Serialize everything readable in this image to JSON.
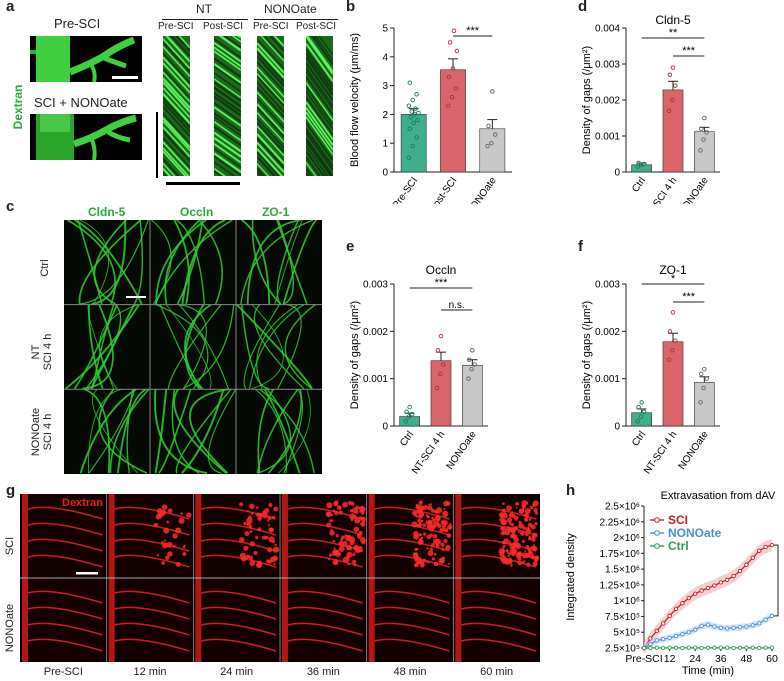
{
  "panel_letters": {
    "a": "a",
    "b": "b",
    "c": "c",
    "d": "d",
    "e": "e",
    "f": "f",
    "g": "g",
    "h": "h"
  },
  "panel_a": {
    "dextran_label": "Dextran",
    "pre_sci_label": "Pre-SCI",
    "sci_nonoate_label": "SCI + NONOate",
    "nt_label": "NT",
    "nonoate_label": "NONOate",
    "pre_sci_col": "Pre-SCI",
    "post_sci_col": "Post-SCI"
  },
  "panel_c": {
    "columns": [
      "Cldn-5",
      "Occln",
      "ZO-1"
    ],
    "rows": [
      {
        "line1": "Ctrl",
        "line2": ""
      },
      {
        "line1": "NT",
        "line2": "SCI 4 h"
      },
      {
        "line1": "NONOate",
        "line2": "SCI 4 h"
      }
    ]
  },
  "panel_g": {
    "dextran_label": "Dextran",
    "rows": [
      "SCI",
      "NONOate"
    ],
    "timepoints": [
      "Pre-SCI",
      "12 min",
      "24 min",
      "36 min",
      "48 min",
      "60 min"
    ]
  },
  "colors": {
    "teal": "#3fae8c",
    "red": "#d9646a",
    "gray": "#c8c8c8",
    "dark_red": "#c0202a",
    "blue": "#4a90d0",
    "green": "#2e9a5a",
    "green_text": "#2aaa3a"
  },
  "chart_data": [
    {
      "id": "b",
      "type": "bar",
      "title": "",
      "ylabel": "Blood flow velocity (μm/ms)",
      "categories": [
        "Pre-SCI",
        "NT post-SCI",
        "NONOate"
      ],
      "values": [
        2.0,
        3.55,
        1.5
      ],
      "errors": [
        0.2,
        0.38,
        0.32
      ],
      "points": [
        [
          0.5,
          0.9,
          1.2,
          1.5,
          1.7,
          1.8,
          1.9,
          2.0,
          2.05,
          2.1,
          2.2,
          2.3,
          2.5,
          2.7,
          3.1
        ],
        [
          2.3,
          2.6,
          2.9,
          3.3,
          3.6,
          4.2,
          4.5,
          4.9
        ],
        [
          0.9,
          1.0,
          1.3,
          1.6,
          2.8
        ]
      ],
      "ylim": [
        0,
        5
      ],
      "yticks": [
        "0",
        "1",
        "2",
        "3",
        "4",
        "5"
      ],
      "significance": [
        {
          "from": 1,
          "to": 2,
          "label": "***"
        }
      ]
    },
    {
      "id": "d",
      "type": "bar",
      "title": "Cldn-5",
      "ylabel": "Density of gaps (/μm²)",
      "categories": [
        "Ctrl",
        "NT-SCI 4 h",
        "NONOate"
      ],
      "values": [
        0.0002,
        0.00228,
        0.00112
      ],
      "errors": [
        5e-05,
        0.00024,
        0.00012
      ],
      "points": [
        [
          0.00015,
          0.0002,
          0.00022,
          0.00025
        ],
        [
          0.0017,
          0.002,
          0.0024,
          0.0027,
          0.0029
        ],
        [
          0.0006,
          0.0009,
          0.0011,
          0.0012,
          0.0015
        ]
      ],
      "ylim": [
        0,
        0.004
      ],
      "yticks": [
        "0",
        "0.001",
        "0.002",
        "0.003",
        "0.004"
      ],
      "significance": [
        {
          "from": 0,
          "to": 2,
          "label": "**"
        },
        {
          "from": 1,
          "to": 2,
          "label": "***"
        }
      ]
    },
    {
      "id": "e",
      "type": "bar",
      "title": "Occln",
      "ylabel": "Density of gaps (/μm²)",
      "categories": [
        "Ctrl",
        "NT-SCI 4 h",
        "NONOate"
      ],
      "values": [
        0.0002,
        0.00138,
        0.00128
      ],
      "errors": [
        7e-05,
        0.00018,
        0.00012
      ],
      "points": [
        [
          0.0001,
          0.0002,
          0.00025,
          0.0003,
          0.0004
        ],
        [
          0.0008,
          0.0011,
          0.0013,
          0.0016,
          0.0019
        ],
        [
          0.001,
          0.0012,
          0.0013,
          0.0014,
          0.0016
        ]
      ],
      "ylim": [
        0,
        0.003
      ],
      "yticks": [
        "0",
        "0.001",
        "0.002",
        "0.003"
      ],
      "significance": [
        {
          "from": 0,
          "to": 2,
          "label": "***"
        },
        {
          "from": 1,
          "to": 2,
          "label": "n.s."
        }
      ]
    },
    {
      "id": "f",
      "type": "bar",
      "title": "ZO-1",
      "ylabel": "Density of gaps (/μm²)",
      "categories": [
        "Ctrl",
        "NT-SCI 4 h",
        "NONOate"
      ],
      "values": [
        0.00028,
        0.00178,
        0.00092
      ],
      "errors": [
        8e-05,
        0.00018,
        0.00012
      ],
      "points": [
        [
          0.0001,
          0.0002,
          0.0003,
          0.0004,
          0.0005
        ],
        [
          0.0014,
          0.0016,
          0.0018,
          0.002,
          0.0024
        ],
        [
          0.0005,
          0.0008,
          0.001,
          0.0011,
          0.0012
        ]
      ],
      "ylim": [
        0,
        0.003
      ],
      "yticks": [
        "0",
        "0.001",
        "0.002",
        "0.003"
      ],
      "significance": [
        {
          "from": 0,
          "to": 2,
          "label": "*"
        },
        {
          "from": 1,
          "to": 2,
          "label": "***"
        }
      ]
    },
    {
      "id": "h",
      "type": "line",
      "title": "Extravasation from dAV",
      "ylabel": "Integrated density",
      "xlabel": "Time (min)",
      "x": [
        0,
        3,
        6,
        9,
        12,
        15,
        18,
        21,
        24,
        27,
        30,
        33,
        36,
        39,
        42,
        45,
        48,
        51,
        54,
        57,
        60
      ],
      "xticks": [
        "Pre-SCI",
        "12",
        "24",
        "36",
        "48",
        "60"
      ],
      "xtick_values": [
        0,
        12,
        24,
        36,
        48,
        60
      ],
      "yticks": [
        "2.5×10⁵",
        "5×10⁵",
        "7.5×10⁵",
        "1×10⁶",
        "1.25×10⁶",
        "1.5×10⁶",
        "1.75×10⁶",
        "2×10⁶",
        "2.25×10⁶",
        "2.5×10⁶"
      ],
      "ytick_values": [
        250000,
        500000,
        750000,
        1000000,
        1250000,
        1500000,
        1750000,
        2000000,
        2250000,
        2500000
      ],
      "ylim": [
        250000,
        2500000
      ],
      "xlim": [
        0,
        60
      ],
      "legend_position": "top-left",
      "series": [
        {
          "name": "SCI",
          "values": [
            250000,
            400000,
            520000,
            640000,
            760000,
            870000,
            960000,
            1040000,
            1110000,
            1160000,
            1200000,
            1240000,
            1290000,
            1330000,
            1390000,
            1470000,
            1570000,
            1680000,
            1790000,
            1850000,
            1880000
          ],
          "band": 100000
        },
        {
          "name": "NONOate",
          "values": [
            250000,
            310000,
            370000,
            390000,
            410000,
            440000,
            470000,
            500000,
            540000,
            600000,
            620000,
            590000,
            570000,
            560000,
            570000,
            580000,
            590000,
            610000,
            640000,
            700000,
            760000
          ],
          "band": 55000
        },
        {
          "name": "Ctrl",
          "values": [
            250000,
            250000,
            255000,
            250000,
            255000,
            255000,
            250000,
            255000,
            255000,
            250000,
            255000,
            255000,
            255000,
            255000,
            250000,
            255000,
            255000,
            255000,
            250000,
            255000,
            255000
          ],
          "band": 8000
        }
      ],
      "significance": [
        {
          "label": "****"
        }
      ]
    }
  ]
}
